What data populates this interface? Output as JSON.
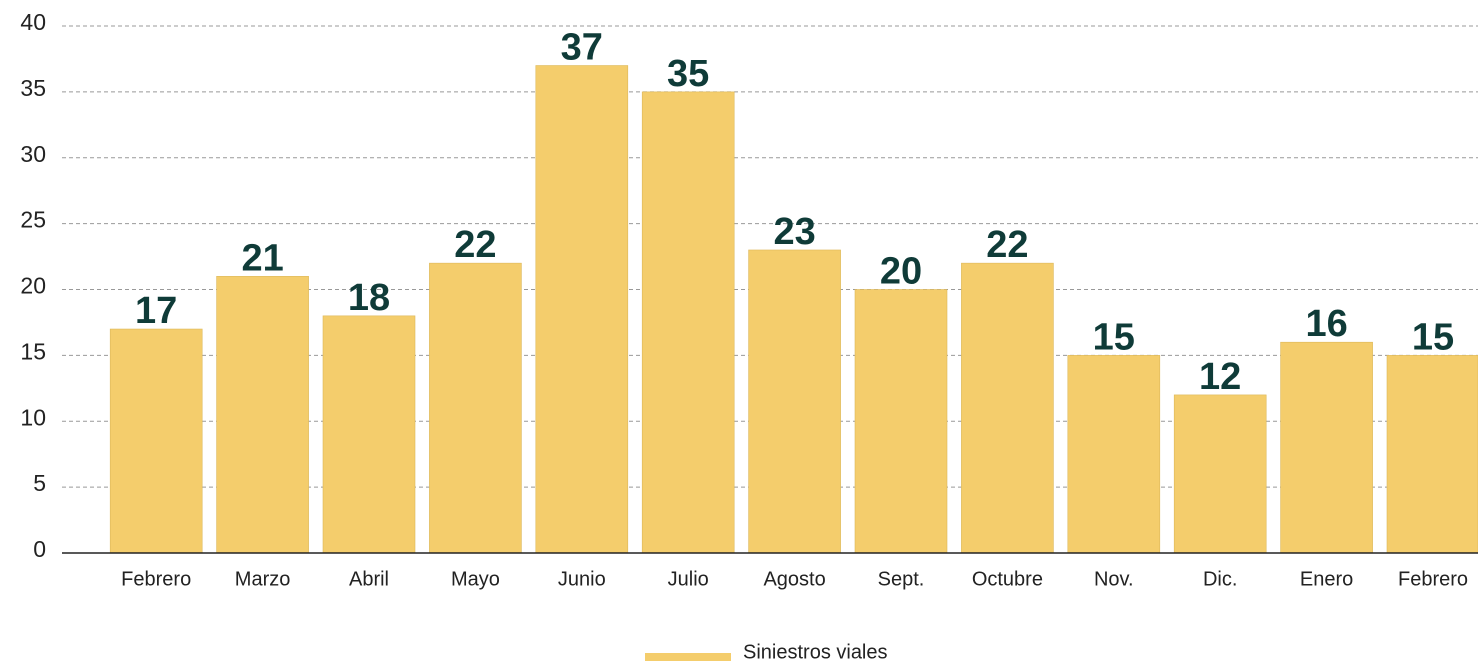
{
  "chart_data": {
    "type": "bar",
    "categories": [
      "Febrero",
      "Marzo",
      "Abril",
      "Mayo",
      "Junio",
      "Julio",
      "Agosto",
      "Sept.",
      "Octubre",
      "Nov.",
      "Dic.",
      "Enero",
      "Febrero"
    ],
    "series": [
      {
        "name": "Siniestros viales",
        "color": "#f4cd6c",
        "values": [
          17,
          21,
          18,
          22,
          37,
          35,
          23,
          20,
          22,
          15,
          12,
          16,
          15
        ]
      }
    ],
    "ylim": [
      0,
      40
    ],
    "yticks": [
      0,
      5,
      10,
      15,
      20,
      25,
      30,
      35,
      40
    ],
    "grid": true
  }
}
